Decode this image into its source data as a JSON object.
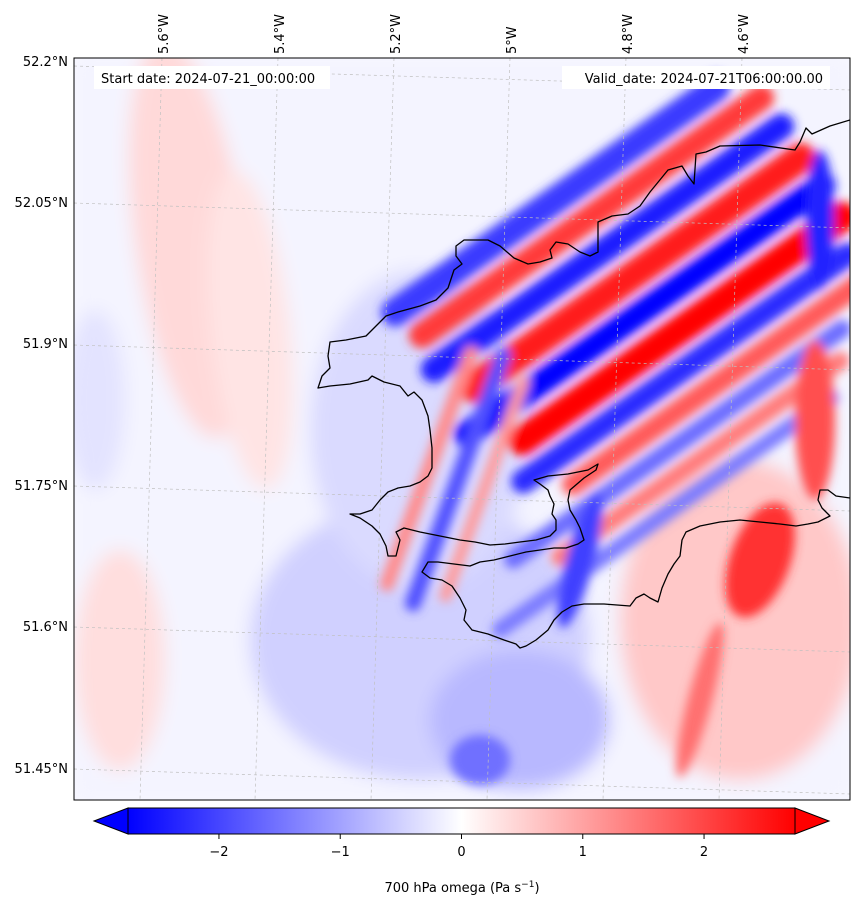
{
  "header": {
    "start_date": "Start date: 2024-07-21_00:00:00",
    "valid_date": "Valid_date: 2024-07-21T06:00:00.00"
  },
  "axes": {
    "lon_ticks": [
      {
        "label": "5.6°W",
        "value": -5.6
      },
      {
        "label": "5.4°W",
        "value": -5.4
      },
      {
        "label": "5.2°W",
        "value": -5.2
      },
      {
        "label": "5°W",
        "value": -5.0
      },
      {
        "label": "4.8°W",
        "value": -4.8
      },
      {
        "label": "4.6°W",
        "value": -4.6
      }
    ],
    "lat_ticks": [
      {
        "label": "52.2°N",
        "value": 52.2
      },
      {
        "label": "52.05°N",
        "value": 52.05
      },
      {
        "label": "51.9°N",
        "value": 51.9
      },
      {
        "label": "51.75°N",
        "value": 51.75
      },
      {
        "label": "51.6°N",
        "value": 51.6
      },
      {
        "label": "51.45°N",
        "value": 51.45
      }
    ]
  },
  "colorbar": {
    "label": "700 hPa omega (Pa s",
    "label_sup": "−1",
    "label_close": ")",
    "min": -2.75,
    "max": 2.75,
    "ticks": [
      {
        "label": "−2",
        "value": -2
      },
      {
        "label": "−1",
        "value": -1
      },
      {
        "label": "0",
        "value": 0
      },
      {
        "label": "1",
        "value": 1
      },
      {
        "label": "2",
        "value": 2
      }
    ],
    "extend": "both",
    "colormap": "bwr"
  },
  "colors": {
    "negative": "#0000ff",
    "neutral": "#ffffff",
    "positive": "#ff0000",
    "coastline": "#000000",
    "gridline": "#b0b0b0"
  },
  "chart_data": {
    "type": "heatmap",
    "field": "700 hPa omega",
    "units": "Pa s^-1",
    "lon_range": [
      -5.72,
      -4.45
    ],
    "lat_range": [
      51.42,
      52.2
    ],
    "value_range": [
      -2.75,
      2.75
    ],
    "grid": true,
    "features": [
      {
        "name": "southwest-northeast wave bands",
        "region": "northeast",
        "amplitude": 2.5
      },
      {
        "name": "weak descent (positive)",
        "region": "west",
        "amplitude": 0.4
      },
      {
        "name": "weak ascent (negative)",
        "region": "south-central",
        "amplitude": -0.8
      }
    ]
  }
}
